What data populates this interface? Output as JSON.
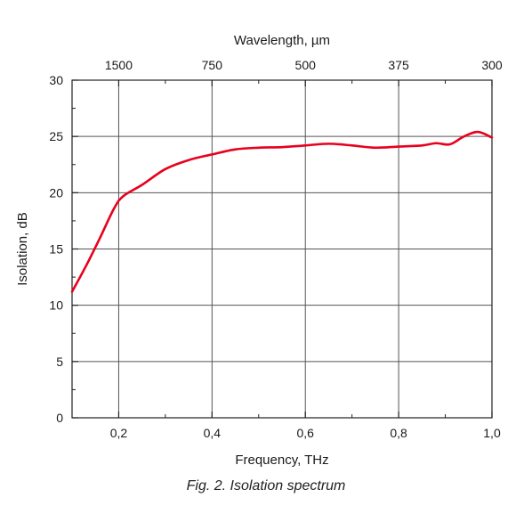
{
  "caption": "Fig. 2. Isolation spectrum",
  "chart_data": {
    "type": "line",
    "xlabel": "Frequency, THz",
    "ylabel": "Isolation, dB",
    "top_xlabel": "Wavelength, µm",
    "xlim": [
      0.1,
      1.0
    ],
    "ylim": [
      0,
      30
    ],
    "x_ticks": [
      0.2,
      0.4,
      0.6,
      0.8,
      1.0
    ],
    "x_tick_labels": [
      "0,2",
      "0,4",
      "0,6",
      "0,8",
      "1,0"
    ],
    "y_ticks": [
      0,
      5,
      10,
      15,
      20,
      25,
      30
    ],
    "y_tick_labels": [
      "0",
      "5",
      "10",
      "15",
      "20",
      "25",
      "30"
    ],
    "top_ticks_thz": [
      0.2,
      0.4,
      0.6,
      0.8,
      1.0
    ],
    "top_tick_labels": [
      "1500",
      "750",
      "500",
      "375",
      "300"
    ],
    "grid": true,
    "line_color": "#e8001c",
    "series": [
      {
        "x": [
          0.1,
          0.13,
          0.16,
          0.19,
          0.21,
          0.25,
          0.3,
          0.35,
          0.4,
          0.45,
          0.5,
          0.55,
          0.6,
          0.65,
          0.7,
          0.75,
          0.8,
          0.85,
          0.88,
          0.91,
          0.94,
          0.97,
          1.0
        ],
        "y": [
          11.2,
          13.5,
          16.0,
          18.6,
          19.7,
          20.7,
          22.1,
          22.9,
          23.4,
          23.85,
          24.0,
          24.05,
          24.2,
          24.35,
          24.2,
          24.0,
          24.1,
          24.2,
          24.4,
          24.3,
          25.0,
          25.4,
          24.9
        ]
      }
    ]
  }
}
